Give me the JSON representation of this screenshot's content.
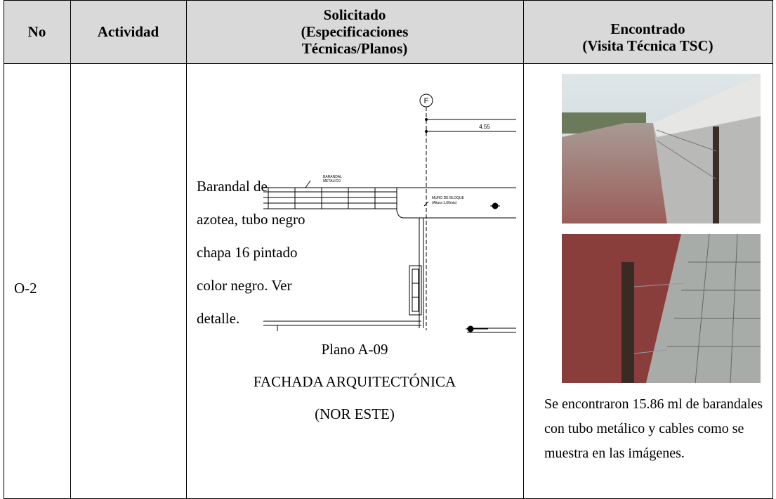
{
  "table": {
    "headers": [
      [
        "No"
      ],
      [
        "Actividad"
      ],
      [
        "Solicitado",
        "(Especificaciones",
        "Técnicas/Planos)"
      ],
      [
        "Encontrado",
        "(Visita Técnica TSC)"
      ]
    ],
    "rows": [
      {
        "no": "O-2",
        "activity": "Barandal de azotea, tubo negro chapa 16 pintado color negro. Ver detalle.",
        "drawing": {
          "grid_label": "F",
          "dimension": "4.55",
          "labels": [
            "BARANDAL",
            "METALICO",
            "MURO DE BLOQUE",
            "(Altura 1.00mts)"
          ]
        },
        "caption": [
          "Plano A-09",
          "FACHADA ARQUITECTÓNICA (NOR ESTE)"
        ],
        "found": "Se encontraron 15.86 ml de barandales con tubo metálico y cables como se muestra en las imágenes."
      }
    ]
  }
}
